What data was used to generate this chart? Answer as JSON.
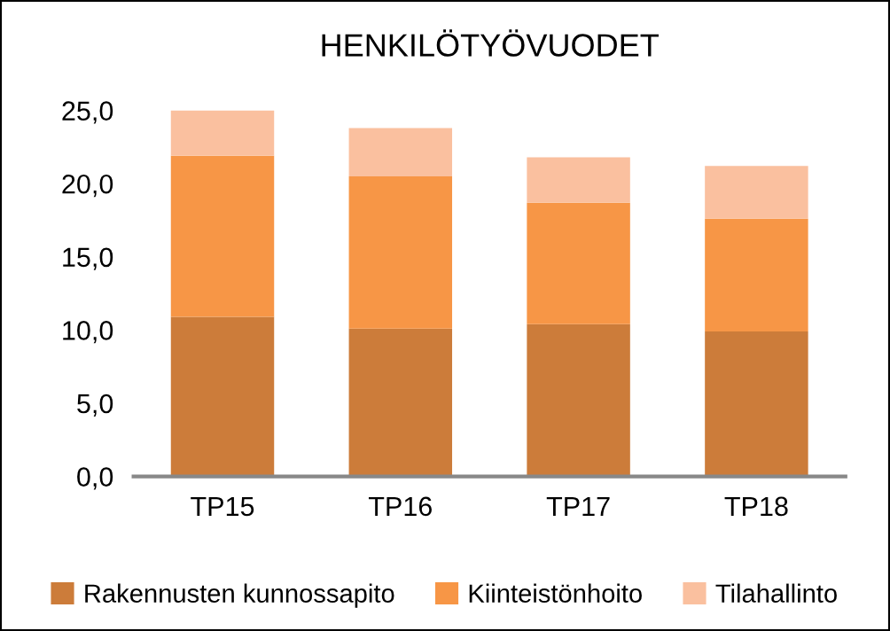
{
  "chart_data": {
    "type": "bar",
    "title": "HENKILÖTYÖVUODET",
    "categories": [
      "TP15",
      "TP16",
      "TP17",
      "TP18"
    ],
    "stacked": true,
    "series": [
      {
        "name": "Rakennusten kunnossapito",
        "color": "#cc7c3a",
        "values": [
          10.9,
          10.1,
          10.4,
          9.9
        ]
      },
      {
        "name": "Kiinteistönhoito",
        "color": "#f79646",
        "values": [
          11.0,
          10.4,
          8.3,
          7.7
        ]
      },
      {
        "name": "Tilahallinto",
        "color": "#fac09f",
        "values": [
          3.1,
          3.3,
          3.1,
          3.6
        ]
      }
    ],
    "ylim": [
      0,
      25
    ],
    "yticks": [
      {
        "value": 0,
        "label": "0,0"
      },
      {
        "value": 5,
        "label": "5,0"
      },
      {
        "value": 10,
        "label": "10,0"
      },
      {
        "value": 15,
        "label": "15,0"
      },
      {
        "value": 20,
        "label": "20,0"
      },
      {
        "value": 25,
        "label": "25,0"
      }
    ],
    "grid": false,
    "legend": "bottom"
  }
}
